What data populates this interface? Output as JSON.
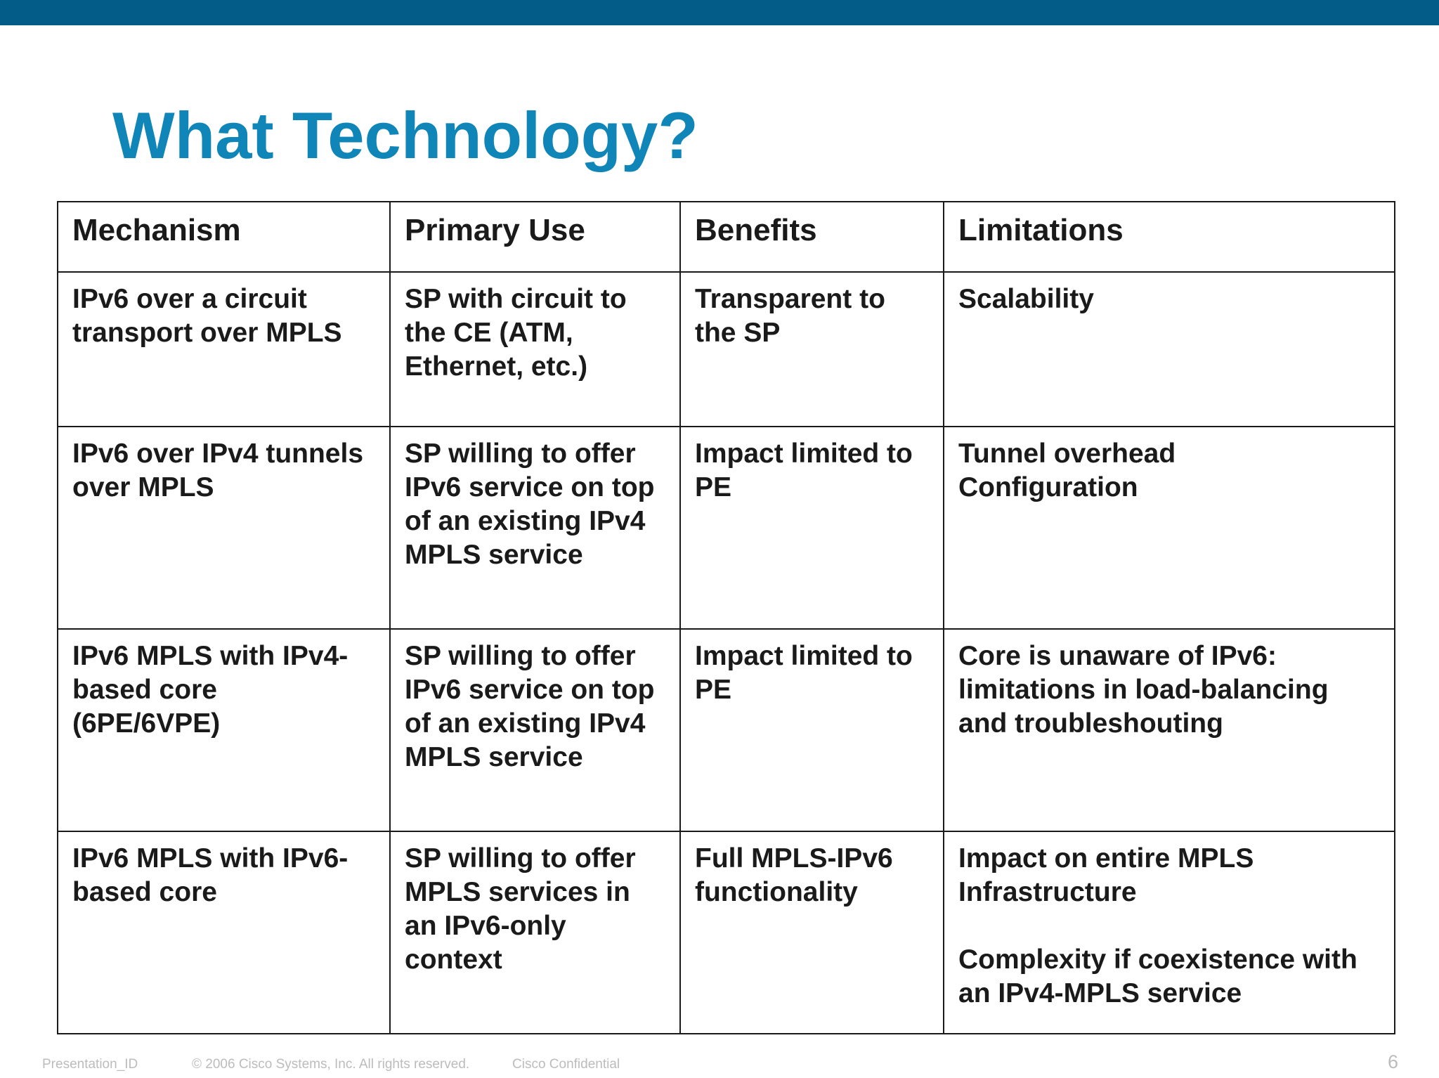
{
  "slide": {
    "title": "What Technology?",
    "colors": {
      "top_bar": "#035c88",
      "title": "#0f85b8",
      "text": "#1a1a1a",
      "footer": "#bcbcbc"
    }
  },
  "table": {
    "headers": [
      "Mechanism",
      "Primary Use",
      "Benefits",
      "Limitations"
    ],
    "rows": [
      [
        "IPv6 over a circuit\ntransport over MPLS",
        "SP with circuit to\nthe CE (ATM,\nEthernet, etc.)",
        "Transparent to\n the SP",
        "Scalability"
      ],
      [
        "IPv6 over IPv4 tunnels\nover MPLS",
        "SP willing to offer\nIPv6 service on top\nof an existing IPv4\nMPLS service",
        "Impact limited to\nPE",
        "Tunnel overhead\nConfiguration"
      ],
      [
        "IPv6 MPLS with IPv4-\nbased core\n(6PE/6VPE)",
        "SP willing to offer\nIPv6 service on top\nof an existing IPv4\nMPLS service",
        "Impact limited to\nPE",
        "Core is unaware of IPv6:\nlimitations in load-balancing\nand troubleshouting"
      ],
      [
        "IPv6 MPLS with IPv6-\nbased core",
        "SP willing to offer\nMPLS services in\nan IPv6-only\ncontext",
        "Full MPLS-IPv6\nfunctionality",
        "Impact on entire MPLS\nInfrastructure\n\nComplexity if coexistence with\nan IPv4-MPLS service"
      ]
    ]
  },
  "footer": {
    "presentation_id": "Presentation_ID",
    "copyright": "© 2006 Cisco Systems, Inc. All rights reserved.",
    "confidential": "Cisco Confidential",
    "page_number": "6"
  }
}
